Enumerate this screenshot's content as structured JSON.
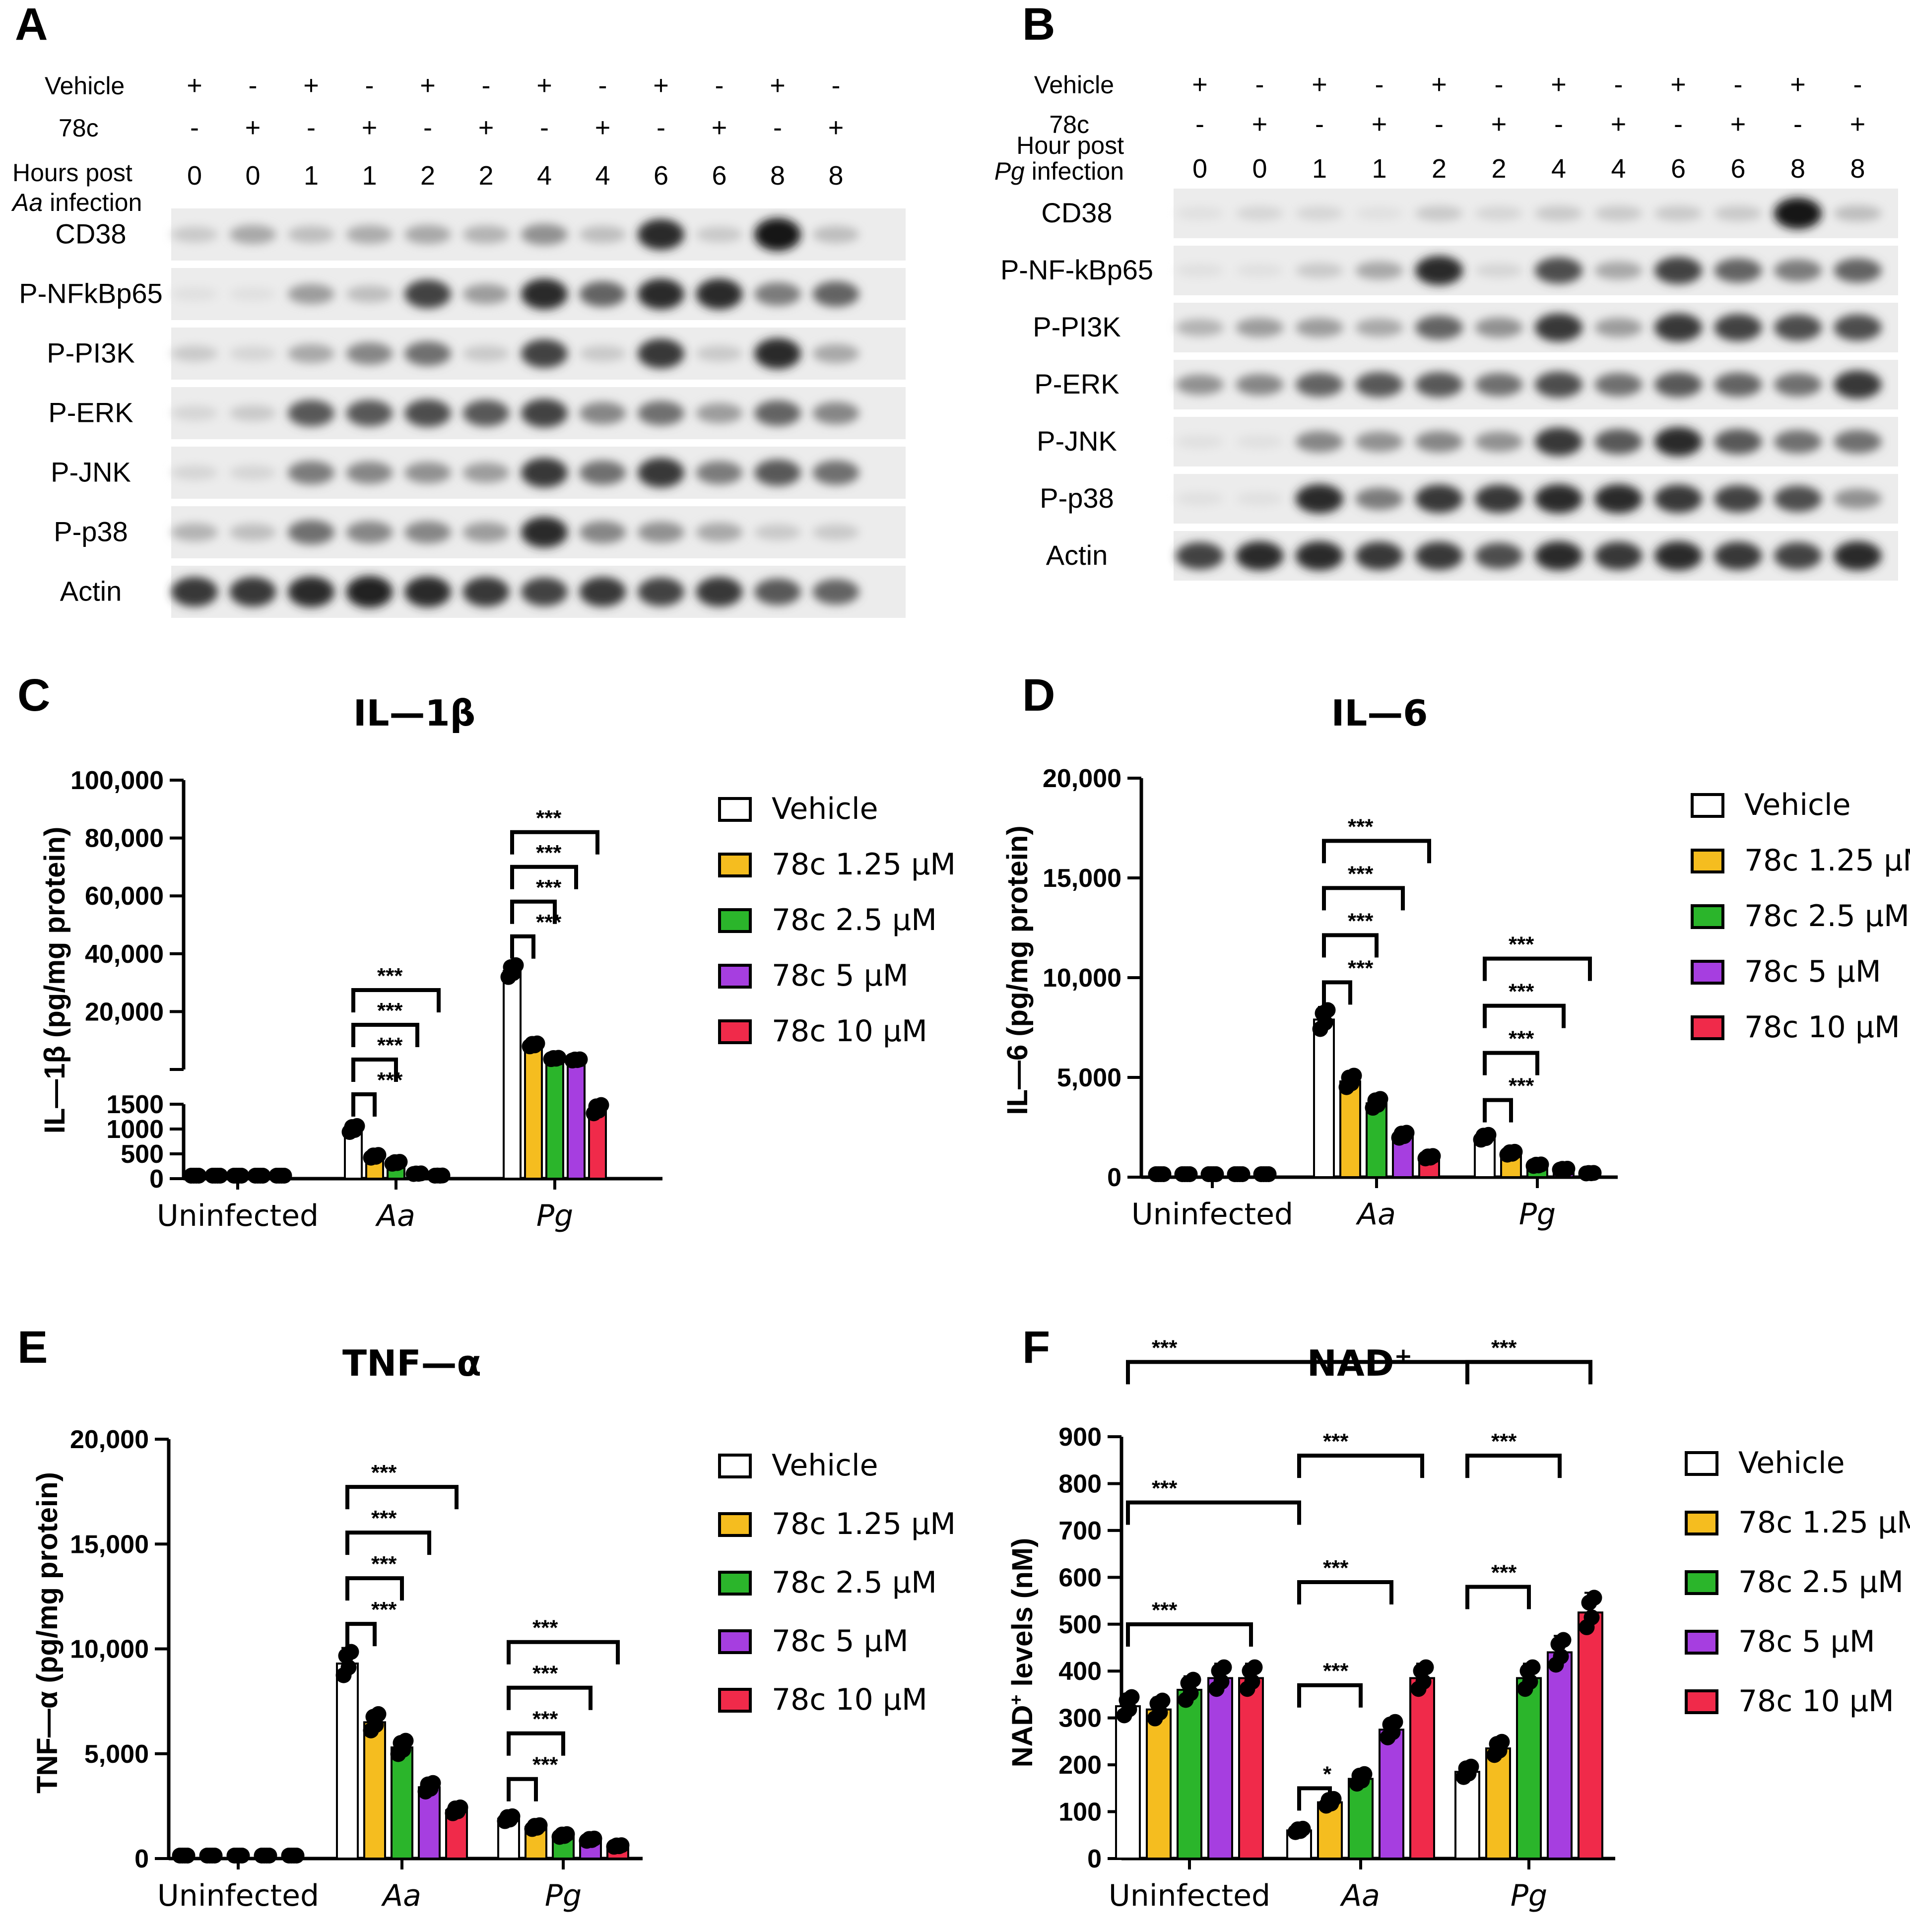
{
  "panels": {
    "A": {
      "letter": "A",
      "row_labels": {
        "vehicle": "Vehicle",
        "compound": "78c",
        "hours_line1": "Hours post",
        "hours_italic": "Aa",
        "hours_line2": " infection"
      },
      "vehicle_signs": [
        "+",
        "-",
        "+",
        "-",
        "+",
        "-",
        "+",
        "-",
        "+",
        "-",
        "+",
        "-"
      ],
      "compound_signs": [
        "-",
        "+",
        "-",
        "+",
        "-",
        "+",
        "-",
        "+",
        "-",
        "+",
        "-",
        "+"
      ],
      "hours": [
        "0",
        "0",
        "1",
        "1",
        "2",
        "2",
        "4",
        "4",
        "6",
        "6",
        "8",
        "8"
      ],
      "blots": [
        {
          "label": "CD38",
          "intensities": [
            0.15,
            0.3,
            0.2,
            0.28,
            0.3,
            0.25,
            0.4,
            0.2,
            0.85,
            0.15,
            0.95,
            0.2
          ]
        },
        {
          "label": "P-NFkBp65",
          "intensities": [
            0.05,
            0.05,
            0.35,
            0.2,
            0.75,
            0.35,
            0.85,
            0.6,
            0.85,
            0.85,
            0.5,
            0.6
          ]
        },
        {
          "label": "P-PI3K",
          "intensities": [
            0.15,
            0.1,
            0.3,
            0.45,
            0.55,
            0.15,
            0.75,
            0.15,
            0.8,
            0.15,
            0.85,
            0.3
          ]
        },
        {
          "label": "P-ERK",
          "intensities": [
            0.1,
            0.15,
            0.65,
            0.65,
            0.7,
            0.65,
            0.75,
            0.45,
            0.55,
            0.35,
            0.6,
            0.45
          ]
        },
        {
          "label": "P-JNK",
          "intensities": [
            0.1,
            0.1,
            0.5,
            0.45,
            0.4,
            0.35,
            0.8,
            0.55,
            0.8,
            0.5,
            0.65,
            0.55
          ]
        },
        {
          "label": "P-p38",
          "intensities": [
            0.25,
            0.2,
            0.55,
            0.45,
            0.45,
            0.35,
            0.85,
            0.45,
            0.4,
            0.3,
            0.15,
            0.15
          ]
        },
        {
          "label": "Actin",
          "intensities": [
            0.8,
            0.8,
            0.85,
            0.9,
            0.85,
            0.8,
            0.75,
            0.8,
            0.75,
            0.8,
            0.65,
            0.6
          ]
        }
      ]
    },
    "B": {
      "letter": "B",
      "row_labels": {
        "vehicle": "Vehicle",
        "compound": "78c",
        "hours_line1": "Hour post",
        "hours_italic": "Pg",
        "hours_line2": " infection"
      },
      "vehicle_signs": [
        "+",
        "-",
        "+",
        "-",
        "+",
        "-",
        "+",
        "-",
        "+",
        "-",
        "+",
        "-"
      ],
      "compound_signs": [
        "-",
        "+",
        "-",
        "+",
        "-",
        "+",
        "-",
        "+",
        "-",
        "+",
        "-",
        "+"
      ],
      "hours": [
        "0",
        "0",
        "1",
        "1",
        "2",
        "2",
        "4",
        "4",
        "6",
        "6",
        "8",
        "8"
      ],
      "blots": [
        {
          "label": "CD38",
          "intensities": [
            0.05,
            0.1,
            0.1,
            0.05,
            0.15,
            0.1,
            0.15,
            0.15,
            0.15,
            0.15,
            0.95,
            0.2
          ]
        },
        {
          "label": "P-NF-kBp65",
          "intensities": [
            0.05,
            0.05,
            0.15,
            0.3,
            0.85,
            0.1,
            0.7,
            0.3,
            0.75,
            0.6,
            0.5,
            0.6
          ]
        },
        {
          "label": "P-PI3K",
          "intensities": [
            0.25,
            0.35,
            0.35,
            0.3,
            0.6,
            0.4,
            0.8,
            0.35,
            0.8,
            0.75,
            0.7,
            0.7
          ]
        },
        {
          "label": "P-ERK",
          "intensities": [
            0.4,
            0.45,
            0.6,
            0.65,
            0.65,
            0.55,
            0.7,
            0.55,
            0.65,
            0.6,
            0.55,
            0.8
          ]
        },
        {
          "label": "P-JNK",
          "intensities": [
            0.05,
            0.05,
            0.45,
            0.4,
            0.45,
            0.4,
            0.8,
            0.65,
            0.85,
            0.65,
            0.55,
            0.55
          ]
        },
        {
          "label": "P-p38",
          "intensities": [
            0.05,
            0.05,
            0.85,
            0.5,
            0.8,
            0.8,
            0.85,
            0.85,
            0.8,
            0.75,
            0.7,
            0.4
          ]
        },
        {
          "label": "Actin",
          "intensities": [
            0.75,
            0.85,
            0.85,
            0.8,
            0.8,
            0.7,
            0.85,
            0.8,
            0.85,
            0.8,
            0.75,
            0.85
          ]
        }
      ]
    }
  },
  "legend": {
    "entries": [
      "Vehicle",
      "78c 1.25 μM",
      "78c 2.5 μM",
      "78c 5 μM",
      "78c 10 μM"
    ],
    "colors": [
      "#ffffff",
      "#f5bd1f",
      "#2bb52b",
      "#a63ee0",
      "#f02a4a"
    ]
  },
  "significance_mark": "***",
  "chart_data": [
    {
      "panel": "C",
      "type": "bar",
      "title": "IL—1β",
      "ylabel": "IL—1β (pg/mg protein)",
      "categories": [
        "Uninfected",
        "Aa",
        "Pg"
      ],
      "series": [
        {
          "name": "Vehicle",
          "values": [
            0,
            1000,
            34000
          ]
        },
        {
          "name": "78c 1.25 μM",
          "values": [
            0,
            450,
            8500
          ]
        },
        {
          "name": "78c 2.5 μM",
          "values": [
            0,
            320,
            3800
          ]
        },
        {
          "name": "78c 5 μM",
          "values": [
            0,
            100,
            3300
          ]
        },
        {
          "name": "78c 10 μM",
          "values": [
            0,
            60,
            1400
          ]
        }
      ],
      "ylim_lower": [
        0,
        1500
      ],
      "ylim_upper": [
        0,
        100000
      ],
      "lower_ticks": [
        {
          "v": 0,
          "t": "0"
        },
        {
          "v": 500,
          "t": "500"
        },
        {
          "v": 1000,
          "t": "1000"
        },
        {
          "v": 1500,
          "t": "1500"
        }
      ],
      "upper_ticks": [
        {
          "v": 20000,
          "t": "20,000"
        },
        {
          "v": 40000,
          "t": "40,000"
        },
        {
          "v": 60000,
          "t": "60,000"
        },
        {
          "v": 80000,
          "t": "80,000"
        },
        {
          "v": 100000,
          "t": "100,000"
        }
      ],
      "brackets": [
        {
          "group": 1,
          "from": 0,
          "to": 1,
          "label": "***"
        },
        {
          "group": 1,
          "from": 0,
          "to": 2,
          "label": "***"
        },
        {
          "group": 1,
          "from": 0,
          "to": 3,
          "label": "***"
        },
        {
          "group": 1,
          "from": 0,
          "to": 4,
          "label": "***"
        },
        {
          "group": 2,
          "from": 0,
          "to": 1,
          "label": "***"
        },
        {
          "group": 2,
          "from": 0,
          "to": 2,
          "label": "***"
        },
        {
          "group": 2,
          "from": 0,
          "to": 3,
          "label": "***"
        },
        {
          "group": 2,
          "from": 0,
          "to": 4,
          "label": "***"
        }
      ]
    },
    {
      "panel": "D",
      "type": "bar",
      "title": "IL—6",
      "ylabel": "IL—6 (pg/mg protein)",
      "categories": [
        "Uninfected",
        "Aa",
        "Pg"
      ],
      "series": [
        {
          "name": "Vehicle",
          "values": [
            0,
            7900,
            2000
          ]
        },
        {
          "name": "78c 1.25 μM",
          "values": [
            0,
            4800,
            1200
          ]
        },
        {
          "name": "78c 2.5 μM",
          "values": [
            0,
            3700,
            600
          ]
        },
        {
          "name": "78c 5 μM",
          "values": [
            0,
            2100,
            400
          ]
        },
        {
          "name": "78c 10 μM",
          "values": [
            0,
            1000,
            200
          ]
        }
      ],
      "ylim": [
        0,
        20000
      ],
      "ticks": [
        {
          "v": 0,
          "t": "0"
        },
        {
          "v": 5000,
          "t": "5,000"
        },
        {
          "v": 10000,
          "t": "10,000"
        },
        {
          "v": 15000,
          "t": "15,000"
        },
        {
          "v": 20000,
          "t": "20,000"
        }
      ],
      "brackets": [
        {
          "group": 1,
          "from": 0,
          "to": 1,
          "label": "***"
        },
        {
          "group": 1,
          "from": 0,
          "to": 2,
          "label": "***"
        },
        {
          "group": 1,
          "from": 0,
          "to": 3,
          "label": "***"
        },
        {
          "group": 1,
          "from": 0,
          "to": 4,
          "label": "***"
        },
        {
          "group": 2,
          "from": 0,
          "to": 1,
          "label": "***"
        },
        {
          "group": 2,
          "from": 0,
          "to": 2,
          "label": "***"
        },
        {
          "group": 2,
          "from": 0,
          "to": 3,
          "label": "***"
        },
        {
          "group": 2,
          "from": 0,
          "to": 4,
          "label": "***"
        }
      ]
    },
    {
      "panel": "E",
      "type": "bar",
      "title": "TNF—α",
      "ylabel": "TNF—α (pg/mg protein)",
      "categories": [
        "Uninfected",
        "Aa",
        "Pg"
      ],
      "series": [
        {
          "name": "Vehicle",
          "values": [
            0,
            9300,
            1900
          ]
        },
        {
          "name": "78c 1.25 μM",
          "values": [
            0,
            6500,
            1500
          ]
        },
        {
          "name": "78c 2.5 μM",
          "values": [
            0,
            5300,
            1100
          ]
        },
        {
          "name": "78c 5 μM",
          "values": [
            0,
            3400,
            900
          ]
        },
        {
          "name": "78c 10 μM",
          "values": [
            0,
            2300,
            600
          ]
        }
      ],
      "ylim": [
        0,
        20000
      ],
      "ticks": [
        {
          "v": 0,
          "t": "0"
        },
        {
          "v": 5000,
          "t": "5,000"
        },
        {
          "v": 10000,
          "t": "10,000"
        },
        {
          "v": 15000,
          "t": "15,000"
        },
        {
          "v": 20000,
          "t": "20,000"
        }
      ],
      "brackets": [
        {
          "group": 1,
          "from": 0,
          "to": 1,
          "label": "***"
        },
        {
          "group": 1,
          "from": 0,
          "to": 2,
          "label": "***"
        },
        {
          "group": 1,
          "from": 0,
          "to": 3,
          "label": "***"
        },
        {
          "group": 1,
          "from": 0,
          "to": 4,
          "label": "***"
        },
        {
          "group": 2,
          "from": 0,
          "to": 1,
          "label": "***"
        },
        {
          "group": 2,
          "from": 0,
          "to": 2,
          "label": "***"
        },
        {
          "group": 2,
          "from": 0,
          "to": 3,
          "label": "***"
        },
        {
          "group": 2,
          "from": 0,
          "to": 4,
          "label": "***"
        }
      ]
    },
    {
      "panel": "F",
      "type": "bar",
      "title": "NAD",
      "title_sup": "+",
      "ylabel": "NAD",
      "ylabel_sup": "+",
      "ylabel_rest": " levels (nM)",
      "categories": [
        "Uninfected",
        "Aa",
        "Pg"
      ],
      "series": [
        {
          "name": "Vehicle",
          "values": [
            325,
            60,
            185
          ]
        },
        {
          "name": "78c 1.25 μM",
          "values": [
            318,
            120,
            235
          ]
        },
        {
          "name": "78c 2.5 μM",
          "values": [
            360,
            170,
            385
          ]
        },
        {
          "name": "78c 5 μM",
          "values": [
            385,
            275,
            440
          ]
        },
        {
          "name": "78c 10 μM",
          "values": [
            385,
            385,
            525
          ]
        }
      ],
      "ylim": [
        0,
        900
      ],
      "ticks": [
        {
          "v": 0,
          "t": "0"
        },
        {
          "v": 100,
          "t": "100"
        },
        {
          "v": 200,
          "t": "200"
        },
        {
          "v": 300,
          "t": "300"
        },
        {
          "v": 400,
          "t": "400"
        },
        {
          "v": 500,
          "t": "500"
        },
        {
          "v": 600,
          "t": "600"
        },
        {
          "v": 700,
          "t": "700"
        },
        {
          "v": 800,
          "t": "800"
        },
        {
          "v": 900,
          "t": "900"
        }
      ],
      "brackets": [
        {
          "group": 0,
          "from": 0,
          "to": 4,
          "level": 5.0,
          "label": "***"
        },
        {
          "group": 0,
          "from": 0,
          "to": "g1v",
          "level": 7.6,
          "label": "***"
        },
        {
          "group": 0,
          "from": 0,
          "to": "g2v",
          "level": 10.6,
          "label": "***"
        },
        {
          "group": 1,
          "from": 0,
          "to": 1,
          "level": 1.5,
          "label": "*"
        },
        {
          "group": 1,
          "from": 0,
          "to": 2,
          "level": 3.7,
          "label": "***"
        },
        {
          "group": 1,
          "from": 0,
          "to": 3,
          "level": 5.9,
          "label": "***"
        },
        {
          "group": 1,
          "from": 0,
          "to": 4,
          "level": 8.6,
          "label": "***"
        },
        {
          "group": 2,
          "from": 0,
          "to": 2,
          "level": 5.8,
          "label": "***"
        },
        {
          "group": 2,
          "from": 0,
          "to": 3,
          "level": 8.6,
          "label": "***"
        },
        {
          "group": 2,
          "from": 0,
          "to": 4,
          "level": 10.6,
          "label": "***"
        }
      ]
    }
  ]
}
